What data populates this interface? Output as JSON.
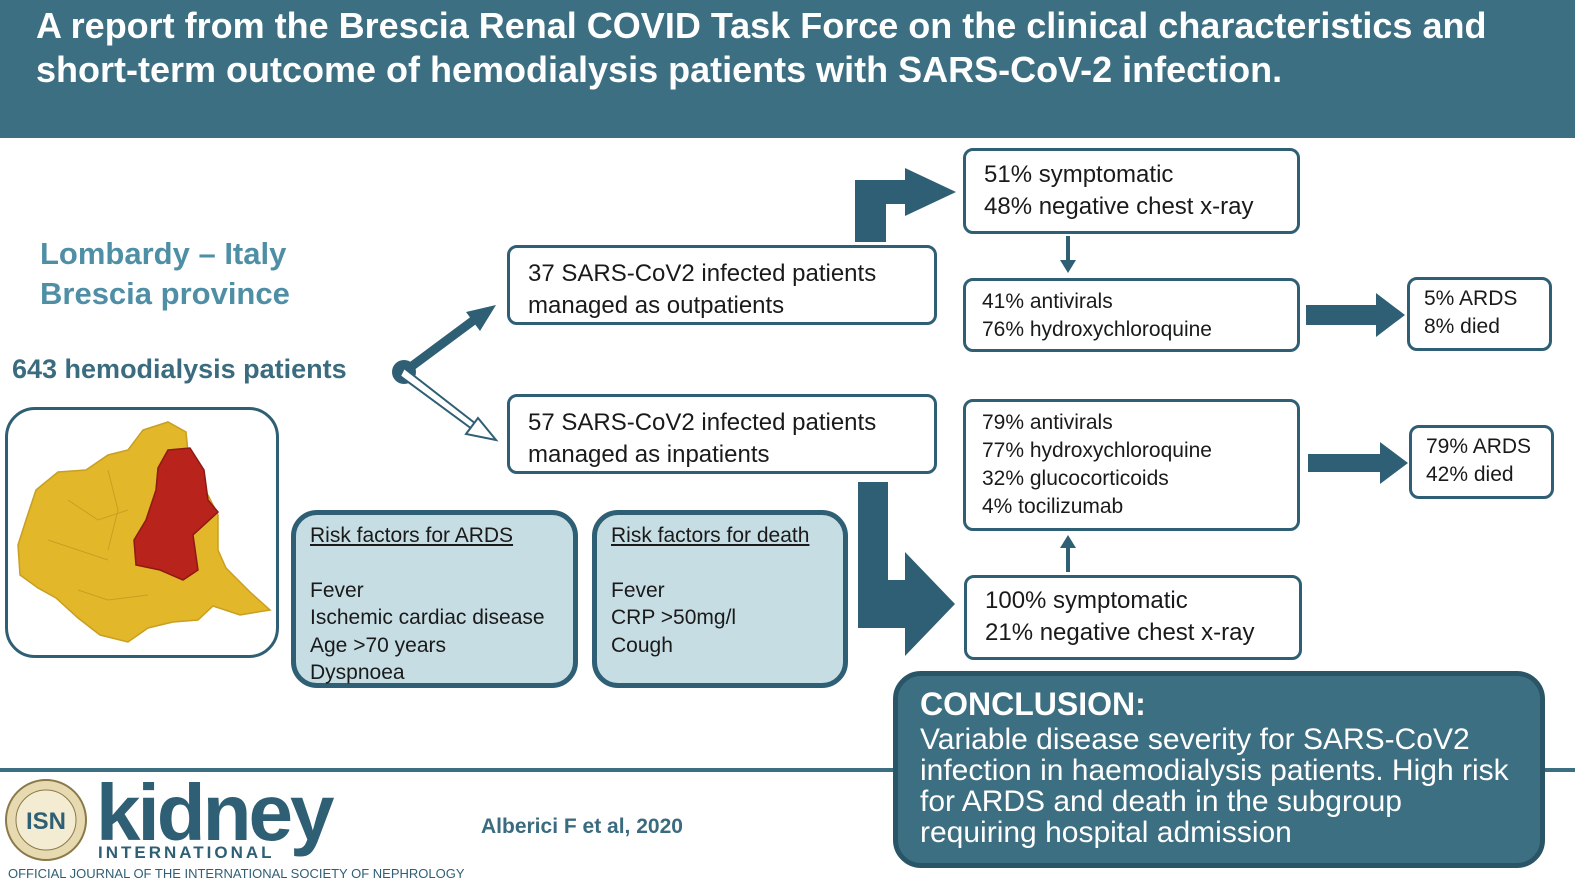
{
  "header": {
    "title": "A report from the Brescia Renal COVID Task Force on the clinical characteristics and short-term outcome of hemodialysis patients with SARS-CoV-2 infection."
  },
  "region": {
    "line1": "Lombardy – Italy",
    "line2": "Brescia province"
  },
  "population": "643 hemodialysis patients",
  "outpatients": {
    "box": [
      "37 SARS-CoV2 infected patients",
      "managed as outpatients"
    ],
    "presentation": [
      "51% symptomatic",
      "48% negative chest x-ray"
    ],
    "treatment": [
      "41% antivirals",
      "76% hydroxychloroquine"
    ],
    "outcome": [
      "5% ARDS",
      "8% died"
    ]
  },
  "inpatients": {
    "box": [
      "57 SARS-CoV2 infected patients",
      "managed as inpatients"
    ],
    "presentation": [
      "100% symptomatic",
      "21% negative chest x-ray"
    ],
    "treatment": [
      "79% antivirals",
      "77% hydroxychloroquine",
      "32% glucocorticoids",
      "4% tocilizumab"
    ],
    "outcome": [
      "79% ARDS",
      "42% died"
    ]
  },
  "risk_ards": {
    "title": "Risk factors for ARDS",
    "items": [
      "Fever",
      "Ischemic cardiac disease",
      "Age >70 years",
      "Dyspnoea"
    ]
  },
  "risk_death": {
    "title": "Risk factors for death",
    "items": [
      "Fever",
      "CRP >50mg/l",
      "Cough"
    ]
  },
  "conclusion": {
    "title": "CONCLUSION:",
    "text": "Variable disease severity for SARS-CoV2 infection in haemodialysis patients. High risk for ARDS and death in the subgroup requiring hospital admission"
  },
  "citation": "Alberici F et al, 2020",
  "logo": {
    "seal_text": "ISN",
    "name": "kidney",
    "subtitle": "INTERNATIONAL",
    "tagline": "OFFICIAL JOURNAL OF THE INTERNATIONAL SOCIETY OF NEPHROLOGY"
  },
  "colors": {
    "header_bg": "#3d6f82",
    "accent": "#2f5f74",
    "region_text": "#4f8fa6",
    "risk_bg": "#c7dde4",
    "map_region": "#e2b72a",
    "map_highlight": "#b8231b"
  }
}
